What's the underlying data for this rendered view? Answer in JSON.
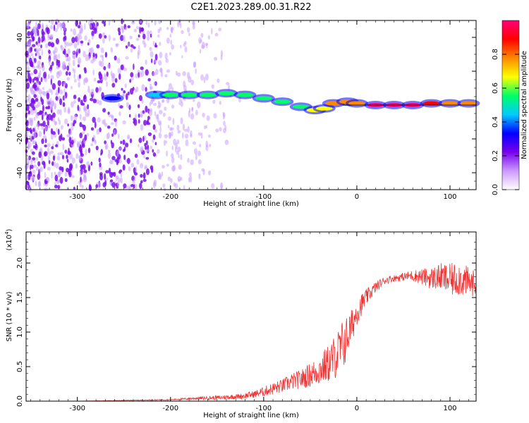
{
  "figure": {
    "title": "C2E1.2023.289.00.31.R22"
  },
  "chart_data": [
    {
      "type": "heatmap",
      "xlabel": "Height of straight line (km)",
      "ylabel": "Frequency (Hz)",
      "xlim": [
        -355,
        128
      ],
      "ylim": [
        -50,
        50
      ],
      "x_ticks": [
        -300,
        -200,
        -100,
        0,
        100
      ],
      "y_ticks": [
        -40,
        -20,
        0,
        20,
        40
      ],
      "colorbar": {
        "label": "Normalized spectral amplitude",
        "range": [
          0.0,
          1.0
        ],
        "ticks": [
          0.0,
          0.2,
          0.4,
          0.6,
          0.8
        ],
        "colors": [
          "#ffffff",
          "#cc99ff",
          "#7700ee",
          "#0000ff",
          "#00ccff",
          "#00ff66",
          "#ffff00",
          "#ff8800",
          "#ff0000",
          "#ff0077"
        ]
      },
      "signal_track": [
        {
          "x": -262,
          "y": 4,
          "amp": 0.35
        },
        {
          "x": -215,
          "y": 6,
          "amp": 0.45
        },
        {
          "x": -200,
          "y": 6,
          "amp": 0.5
        },
        {
          "x": -180,
          "y": 6,
          "amp": 0.5
        },
        {
          "x": -160,
          "y": 6,
          "amp": 0.5
        },
        {
          "x": -140,
          "y": 7,
          "amp": 0.55
        },
        {
          "x": -120,
          "y": 6,
          "amp": 0.55
        },
        {
          "x": -100,
          "y": 4,
          "amp": 0.6
        },
        {
          "x": -80,
          "y": 2,
          "amp": 0.6
        },
        {
          "x": -60,
          "y": -1,
          "amp": 0.6
        },
        {
          "x": -45,
          "y": -3,
          "amp": 0.65
        },
        {
          "x": -35,
          "y": -2,
          "amp": 0.7
        },
        {
          "x": -25,
          "y": 1,
          "amp": 0.75
        },
        {
          "x": -10,
          "y": 2,
          "amp": 0.8
        },
        {
          "x": 0,
          "y": 1,
          "amp": 0.8
        },
        {
          "x": 20,
          "y": 0,
          "amp": 0.95
        },
        {
          "x": 40,
          "y": 0,
          "amp": 1.0
        },
        {
          "x": 60,
          "y": 0,
          "amp": 0.95
        },
        {
          "x": 80,
          "y": 1,
          "amp": 0.85
        },
        {
          "x": 100,
          "y": 1,
          "amp": 0.8
        },
        {
          "x": 120,
          "y": 1,
          "amp": 0.75
        }
      ]
    },
    {
      "type": "line",
      "xlabel": "Height of straight line (km)",
      "ylabel": "SNR (10 * v/v)",
      "y_multiplier": "(x10",
      "y_multiplier_exp": "4",
      "y_multiplier_close": ")",
      "xlim": [
        -355,
        128
      ],
      "ylim": [
        0,
        2.45
      ],
      "x_ticks": [
        -300,
        -200,
        -100,
        0,
        100
      ],
      "y_ticks": [
        0.0,
        0.5,
        1.0,
        1.5,
        2.0
      ],
      "color": "#ee3333",
      "series": [
        {
          "x": [
            -355,
            -300,
            -250,
            -200,
            -175,
            -150,
            -125,
            -110,
            -100,
            -90,
            -80,
            -70,
            -60,
            -50,
            -40,
            -30,
            -25,
            -20,
            -15,
            -10,
            -5,
            0,
            10,
            20,
            30,
            40,
            50,
            60,
            70,
            80,
            90,
            100,
            110,
            120,
            128
          ],
          "y": [
            0.0,
            0.0,
            0.01,
            0.02,
            0.04,
            0.05,
            0.07,
            0.1,
            0.14,
            0.18,
            0.22,
            0.28,
            0.32,
            0.38,
            0.45,
            0.55,
            0.62,
            0.7,
            0.8,
            0.95,
            1.1,
            1.3,
            1.5,
            1.65,
            1.75,
            1.78,
            1.8,
            1.82,
            1.8,
            1.78,
            1.8,
            1.75,
            1.78,
            1.72,
            1.7
          ],
          "noise": [
            0.0,
            0.0,
            0.005,
            0.008,
            0.02,
            0.03,
            0.04,
            0.05,
            0.07,
            0.09,
            0.1,
            0.12,
            0.14,
            0.18,
            0.22,
            0.28,
            0.32,
            0.35,
            0.4,
            0.3,
            0.25,
            0.2,
            0.12,
            0.08,
            0.06,
            0.05,
            0.06,
            0.08,
            0.12,
            0.16,
            0.2,
            0.24,
            0.26,
            0.22,
            0.18
          ]
        }
      ]
    }
  ]
}
